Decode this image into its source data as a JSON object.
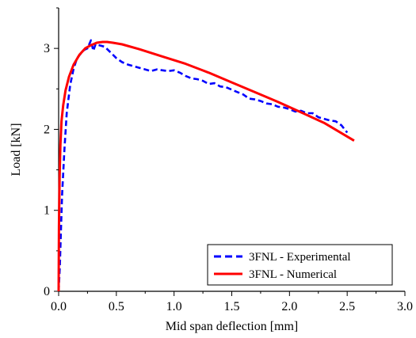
{
  "chart_data": {
    "type": "line",
    "xlabel": "Mid span deflection [mm]",
    "ylabel": "Load [kN]",
    "xlim": [
      0,
      3.0
    ],
    "ylim": [
      0,
      3.5
    ],
    "x_ticks": [
      "0.0",
      "0.5",
      "1.0",
      "1.5",
      "2.0",
      "2.5",
      "3.0"
    ],
    "y_ticks": [
      "0",
      "1",
      "2",
      "3"
    ],
    "grid": false,
    "legend_position": "bottom-right",
    "series": [
      {
        "name": "3FNL - Experimental",
        "color": "#0000ff",
        "style": "dashed",
        "x": [
          0,
          0.01,
          0.02,
          0.03,
          0.05,
          0.07,
          0.1,
          0.13,
          0.16,
          0.2,
          0.22,
          0.25,
          0.28,
          0.3,
          0.32,
          0.35,
          0.4,
          0.45,
          0.5,
          0.55,
          0.6,
          0.65,
          0.7,
          0.75,
          0.8,
          0.85,
          0.9,
          0.95,
          1.0,
          1.05,
          1.1,
          1.15,
          1.2,
          1.25,
          1.3,
          1.35,
          1.4,
          1.45,
          1.5,
          1.55,
          1.6,
          1.65,
          1.7,
          1.75,
          1.8,
          1.85,
          1.9,
          1.95,
          2.0,
          2.05,
          2.1,
          2.15,
          2.2,
          2.25,
          2.3,
          2.35,
          2.4,
          2.45,
          2.5
        ],
        "y": [
          0.0,
          0.3,
          0.75,
          1.2,
          1.75,
          2.2,
          2.55,
          2.75,
          2.88,
          2.95,
          2.98,
          3.0,
          3.1,
          2.97,
          3.05,
          3.04,
          3.02,
          2.95,
          2.88,
          2.83,
          2.8,
          2.78,
          2.76,
          2.74,
          2.72,
          2.74,
          2.73,
          2.72,
          2.73,
          2.7,
          2.66,
          2.63,
          2.62,
          2.6,
          2.56,
          2.57,
          2.53,
          2.52,
          2.49,
          2.46,
          2.43,
          2.38,
          2.37,
          2.35,
          2.32,
          2.31,
          2.28,
          2.27,
          2.25,
          2.22,
          2.23,
          2.2,
          2.2,
          2.15,
          2.13,
          2.11,
          2.1,
          2.05,
          1.96
        ]
      },
      {
        "name": "3FNL - Numerical",
        "color": "#ff0000",
        "style": "solid",
        "x": [
          0,
          0.003,
          0.008,
          0.015,
          0.025,
          0.04,
          0.06,
          0.09,
          0.13,
          0.18,
          0.23,
          0.28,
          0.33,
          0.38,
          0.42,
          0.47,
          0.55,
          0.7,
          0.9,
          1.1,
          1.3,
          1.5,
          1.7,
          1.9,
          2.1,
          2.3,
          2.56
        ],
        "y": [
          0.0,
          0.8,
          1.4,
          1.8,
          2.1,
          2.3,
          2.48,
          2.65,
          2.8,
          2.92,
          3.0,
          3.04,
          3.07,
          3.08,
          3.08,
          3.07,
          3.05,
          2.99,
          2.9,
          2.81,
          2.7,
          2.58,
          2.46,
          2.34,
          2.21,
          2.08,
          1.86
        ]
      }
    ]
  }
}
